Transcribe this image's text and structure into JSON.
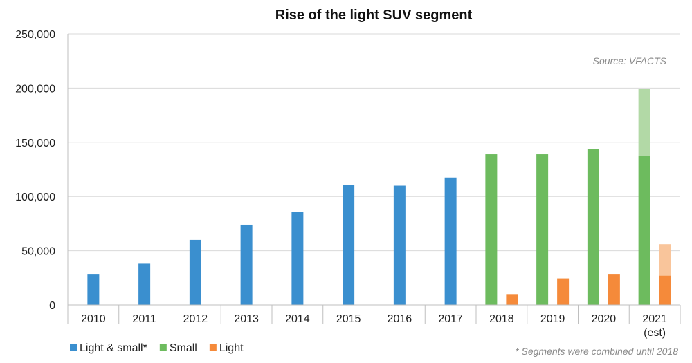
{
  "chart_data": {
    "type": "bar",
    "title": "Rise of the light SUV segment",
    "source_note": "Source: VFACTS",
    "footnote": "* Segments were combined until 2018",
    "xlabel": "",
    "ylabel": "",
    "ylim": [
      0,
      250000
    ],
    "y_ticks": [
      "0",
      "50,000",
      "100,000",
      "150,000",
      "200,000",
      "250,000"
    ],
    "categories": [
      "2010",
      "2011",
      "2012",
      "2013",
      "2014",
      "2015",
      "2016",
      "2017",
      "2018",
      "2019",
      "2020",
      "2021"
    ],
    "category_sublabels": [
      "",
      "",
      "",
      "",
      "",
      "",
      "",
      "",
      "",
      "",
      "",
      "(est)"
    ],
    "grid": "horizontal",
    "legend_position": "bottom-left",
    "series": [
      {
        "name": "Light & small*",
        "color": "#3a8fcf",
        "values": [
          28000,
          38000,
          60000,
          74000,
          86000,
          110500,
          110000,
          117500,
          null,
          null,
          null,
          null
        ]
      },
      {
        "name": "Small",
        "color": "#6dbb5e",
        "estimate_color": "#b2d9a6",
        "values": [
          null,
          null,
          null,
          null,
          null,
          null,
          null,
          null,
          139000,
          139000,
          143500,
          137500
        ],
        "estimate_totals": [
          null,
          null,
          null,
          null,
          null,
          null,
          null,
          null,
          null,
          null,
          null,
          199000
        ]
      },
      {
        "name": "Light",
        "color": "#f58a3a",
        "estimate_color": "#f9c59b",
        "values": [
          null,
          null,
          null,
          null,
          null,
          null,
          null,
          null,
          10000,
          24500,
          28000,
          27000
        ],
        "estimate_totals": [
          null,
          null,
          null,
          null,
          null,
          null,
          null,
          null,
          null,
          null,
          null,
          56000
        ]
      }
    ]
  }
}
